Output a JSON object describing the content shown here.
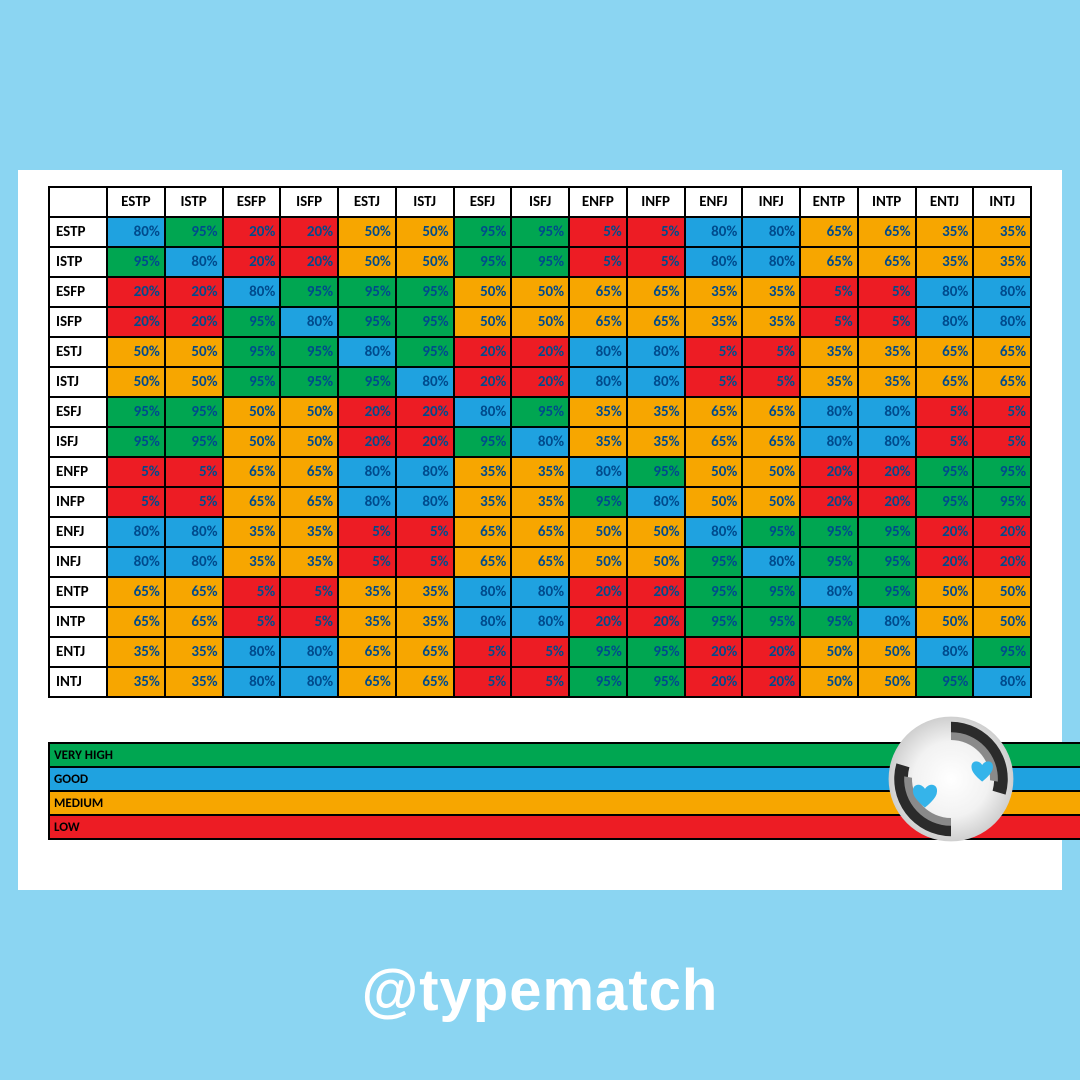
{
  "page_bg": "#8bd5f2",
  "panel_bg": "#ffffff",
  "handle": "@typematch",
  "handle_color": "#ffffff",
  "types": [
    "ESTP",
    "ISTP",
    "ESFP",
    "ISFP",
    "ESTJ",
    "ISTJ",
    "ESFJ",
    "ISFJ",
    "ENFP",
    "INFP",
    "ENFJ",
    "INFJ",
    "ENTP",
    "INTP",
    "ENTJ",
    "INTJ"
  ],
  "cell_text_color": "#004b8d",
  "header_text_color": "#000000",
  "border_color": "#000000",
  "level_colors": {
    "very_high": "#00a651",
    "good": "#1fa2e0",
    "medium": "#f7a600",
    "low": "#ed1c24"
  },
  "legend": [
    {
      "label": "VERY HIGH",
      "color_key": "very_high"
    },
    {
      "label": "GOOD",
      "color_key": "good"
    },
    {
      "label": "MEDIUM",
      "color_key": "medium"
    },
    {
      "label": "LOW",
      "color_key": "low"
    }
  ],
  "matrix": [
    [
      80,
      95,
      20,
      20,
      50,
      50,
      95,
      95,
      5,
      5,
      80,
      80,
      65,
      65,
      35,
      35
    ],
    [
      95,
      80,
      20,
      20,
      50,
      50,
      95,
      95,
      5,
      5,
      80,
      80,
      65,
      65,
      35,
      35
    ],
    [
      20,
      20,
      80,
      95,
      95,
      95,
      50,
      50,
      65,
      65,
      35,
      35,
      5,
      5,
      80,
      80
    ],
    [
      20,
      20,
      95,
      80,
      95,
      95,
      50,
      50,
      65,
      65,
      35,
      35,
      5,
      5,
      80,
      80
    ],
    [
      50,
      50,
      95,
      95,
      80,
      95,
      20,
      20,
      80,
      80,
      5,
      5,
      35,
      35,
      65,
      65
    ],
    [
      50,
      50,
      95,
      95,
      95,
      80,
      20,
      20,
      80,
      80,
      5,
      5,
      35,
      35,
      65,
      65
    ],
    [
      95,
      95,
      50,
      50,
      20,
      20,
      80,
      95,
      35,
      35,
      65,
      65,
      80,
      80,
      5,
      5
    ],
    [
      95,
      95,
      50,
      50,
      20,
      20,
      95,
      80,
      35,
      35,
      65,
      65,
      80,
      80,
      5,
      5
    ],
    [
      5,
      5,
      65,
      65,
      80,
      80,
      35,
      35,
      80,
      95,
      50,
      50,
      20,
      20,
      95,
      95
    ],
    [
      5,
      5,
      65,
      65,
      80,
      80,
      35,
      35,
      95,
      80,
      50,
      50,
      20,
      20,
      95,
      95
    ],
    [
      80,
      80,
      35,
      35,
      5,
      5,
      65,
      65,
      50,
      50,
      80,
      95,
      95,
      95,
      20,
      20
    ],
    [
      80,
      80,
      35,
      35,
      5,
      5,
      65,
      65,
      50,
      50,
      95,
      80,
      95,
      95,
      20,
      20
    ],
    [
      65,
      65,
      5,
      5,
      35,
      35,
      80,
      80,
      20,
      20,
      95,
      95,
      80,
      95,
      50,
      50
    ],
    [
      65,
      65,
      5,
      5,
      35,
      35,
      80,
      80,
      20,
      20,
      95,
      95,
      95,
      80,
      50,
      50
    ],
    [
      35,
      35,
      80,
      80,
      65,
      65,
      5,
      5,
      95,
      95,
      20,
      20,
      50,
      50,
      80,
      95
    ],
    [
      35,
      35,
      80,
      80,
      65,
      65,
      5,
      5,
      95,
      95,
      20,
      20,
      50,
      50,
      95,
      80
    ]
  ],
  "value_to_level": {
    "95": "very_high",
    "80": "good",
    "65": "medium",
    "50": "medium",
    "35": "medium",
    "20": "low",
    "5": "low"
  },
  "logo": {
    "ring_dark": "#2b2b2b",
    "ring_mid": "#8a8a8a",
    "ring_light": "#e6e6e6",
    "heart": "#35b4ea",
    "bg": "#ffffff"
  }
}
